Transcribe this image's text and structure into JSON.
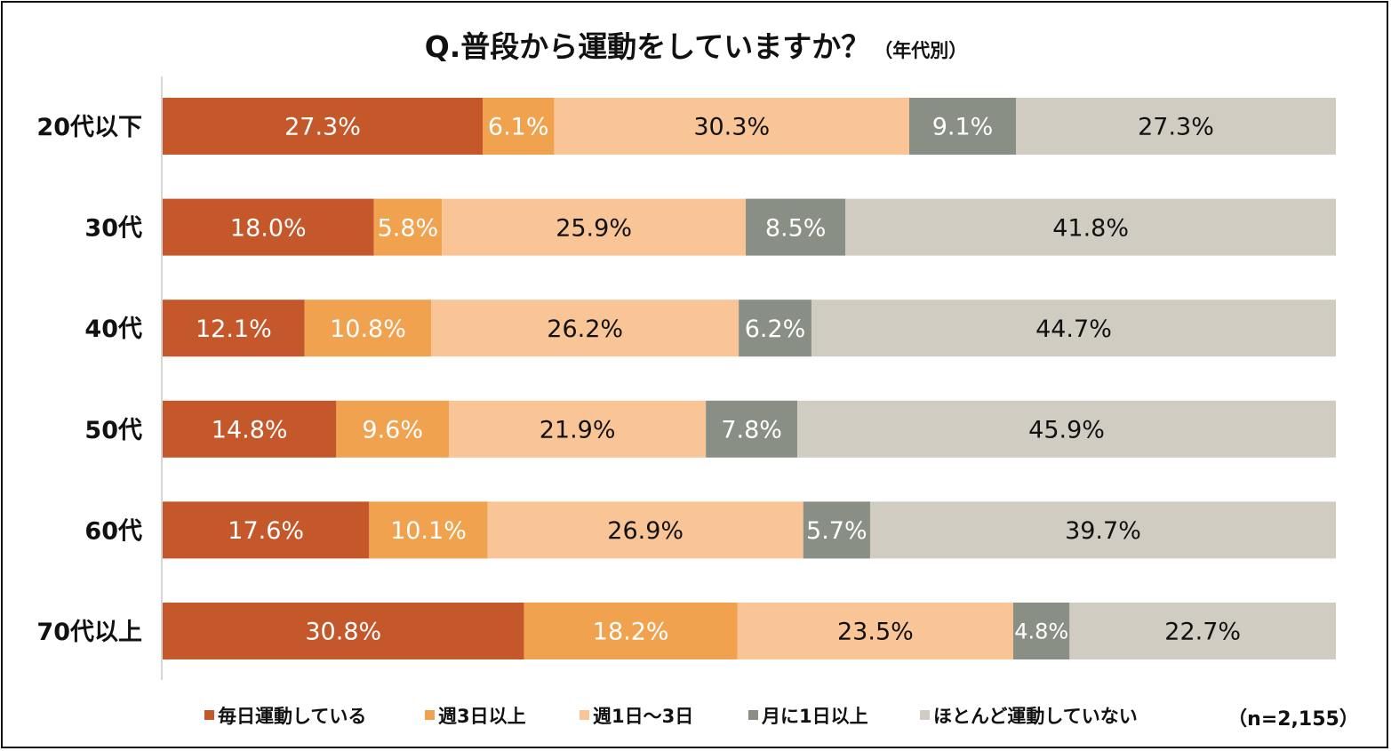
{
  "chart_data": {
    "type": "bar",
    "orientation": "horizontal",
    "stacked": true,
    "percent_stacked": true,
    "title": "Q.普段から運動をしていますか？",
    "subtitle": "（年代別）",
    "sample_size_label": "（n=2,155）",
    "categories": [
      "20代以下",
      "30代",
      "40代",
      "50代",
      "60代",
      "70代以上"
    ],
    "series": [
      {
        "name": "毎日運動している",
        "color": "#C5582A",
        "label_color": "#FFFFFF",
        "values": [
          27.3,
          18.0,
          12.1,
          14.8,
          17.6,
          30.8
        ],
        "labels": [
          "27.3%",
          "18.0%",
          "12.1%",
          "14.8%",
          "17.6%",
          "30.8%"
        ]
      },
      {
        "name": "週3日以上",
        "color": "#F0A24E",
        "label_color": "#FFFFFF",
        "values": [
          6.1,
          5.8,
          10.8,
          9.6,
          10.1,
          18.2
        ],
        "labels": [
          "6.1%",
          "5.8%",
          "10.8%",
          "9.6%",
          "10.1%",
          "18.2%"
        ]
      },
      {
        "name": "週1日～3日",
        "color": "#F9C597",
        "label_color": "#111111",
        "values": [
          30.3,
          25.9,
          26.2,
          21.9,
          26.9,
          23.5
        ],
        "labels": [
          "30.3%",
          "25.9%",
          "26.2%",
          "21.9%",
          "26.9%",
          "23.5%"
        ]
      },
      {
        "name": "月に1日以上",
        "color": "#8A8F85",
        "label_color": "#FFFFFF",
        "values": [
          9.1,
          8.5,
          6.2,
          7.8,
          5.7,
          4.8
        ],
        "labels": [
          "9.1%",
          "8.5%",
          "6.2%",
          "7.8%",
          "5.7%",
          "4.8%"
        ]
      },
      {
        "name": "ほとんど運動していない",
        "color": "#D1CCC2",
        "label_color": "#111111",
        "values": [
          27.3,
          41.8,
          44.7,
          45.9,
          39.7,
          22.7
        ],
        "labels": [
          "27.3%",
          "41.8%",
          "44.7%",
          "45.9%",
          "39.7%",
          "22.7%"
        ]
      }
    ],
    "xlim": [
      0,
      100
    ],
    "grid": false,
    "legend_position": "bottom"
  }
}
